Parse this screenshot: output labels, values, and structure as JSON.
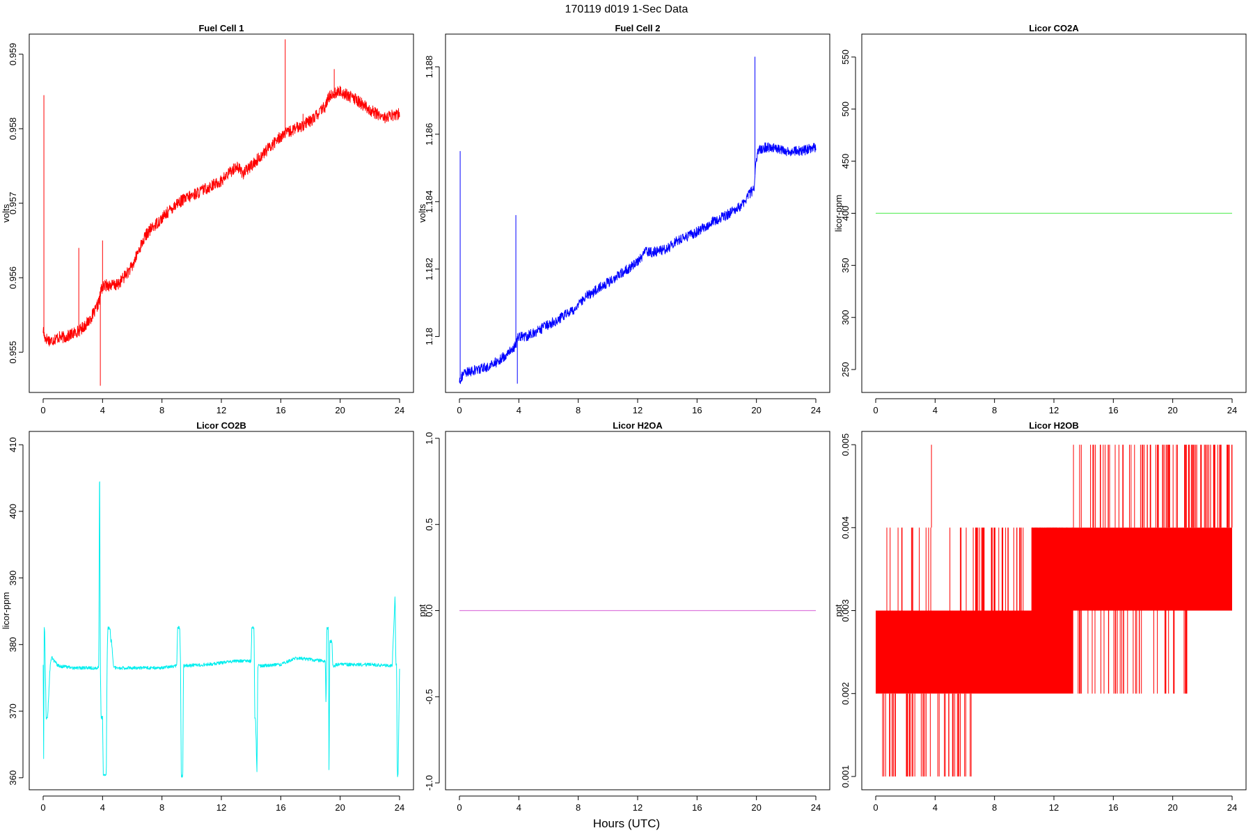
{
  "figure": {
    "title": "170119   d019   1-Sec Data",
    "xlabel": "Hours (UTC)"
  },
  "chart_data": [
    {
      "type": "line",
      "title": "Fuel Cell 1",
      "ylabel": "volts",
      "color": "#ff0000",
      "xlim": [
        0,
        24
      ],
      "ylim": [
        0.95446,
        0.95927
      ],
      "xticks": [
        0,
        4,
        8,
        12,
        16,
        20,
        24
      ],
      "yticks": [
        0.955,
        0.956,
        0.957,
        0.958,
        0.959
      ],
      "noise": 8e-05,
      "x": [
        0,
        0.1,
        0.5,
        1,
        1.5,
        2,
        2.5,
        3,
        3.5,
        3.8,
        3.9,
        4.2,
        5,
        6,
        6.5,
        7,
        7.5,
        8,
        8.5,
        9,
        10,
        11,
        12,
        13,
        13.5,
        14,
        14.5,
        15,
        16,
        17,
        18,
        19,
        19.3,
        20,
        21,
        22,
        23,
        24
      ],
      "y": [
        0.9553,
        0.9552,
        0.95515,
        0.9552,
        0.9552,
        0.95525,
        0.9553,
        0.9554,
        0.95555,
        0.9557,
        0.95585,
        0.9559,
        0.9559,
        0.95615,
        0.9564,
        0.9566,
        0.9567,
        0.9568,
        0.9569,
        0.957,
        0.9571,
        0.9572,
        0.9573,
        0.9575,
        0.9574,
        0.9575,
        0.9576,
        0.9577,
        0.9579,
        0.958,
        0.9581,
        0.9583,
        0.95845,
        0.9585,
        0.9584,
        0.95825,
        0.95815,
        0.9582
      ],
      "spikes": [
        [
          0.05,
          0.95845
        ],
        [
          2.4,
          0.9564
        ],
        [
          3.85,
          0.95455
        ],
        [
          4.0,
          0.9565
        ],
        [
          16.3,
          0.9592
        ],
        [
          17.5,
          0.9582
        ],
        [
          19.6,
          0.9588
        ]
      ]
    },
    {
      "type": "line",
      "title": "Fuel Cell 2",
      "ylabel": "volts",
      "color": "#0000ff",
      "xlim": [
        0,
        24
      ],
      "ylim": [
        1.17834,
        1.18897
      ],
      "xticks": [
        0,
        4,
        8,
        12,
        16,
        20,
        24
      ],
      "yticks": [
        1.18,
        1.182,
        1.184,
        1.186,
        1.188
      ],
      "noise": 0.00015,
      "x": [
        0,
        0.3,
        1,
        2,
        3,
        3.7,
        3.85,
        3.9,
        4.5,
        5,
        6,
        7,
        8,
        8.5,
        9,
        9.5,
        10,
        11,
        12,
        12.5,
        13,
        14,
        14.5,
        15,
        16,
        17,
        18,
        19,
        19.5,
        19.85,
        19.95,
        20.1,
        20.5,
        21,
        22,
        23,
        24
      ],
      "y": [
        1.1787,
        1.1789,
        1.179,
        1.1791,
        1.1794,
        1.1797,
        1.1798,
        1.18,
        1.18,
        1.1801,
        1.18035,
        1.1806,
        1.1809,
        1.1812,
        1.1813,
        1.1815,
        1.1816,
        1.1819,
        1.1822,
        1.1825,
        1.1825,
        1.1826,
        1.1828,
        1.1829,
        1.1831,
        1.1834,
        1.1836,
        1.1839,
        1.1842,
        1.1844,
        1.1852,
        1.1855,
        1.1856,
        1.1856,
        1.1855,
        1.1855,
        1.1856
      ],
      "spikes": [
        [
          0.05,
          1.1855
        ],
        [
          3.8,
          1.1836
        ],
        [
          3.9,
          1.1786
        ],
        [
          19.9,
          1.1883
        ]
      ]
    },
    {
      "type": "line",
      "title": "Licor CO2A",
      "ylabel": "licor-ppm",
      "color": "#66ee66",
      "xlim": [
        0,
        24
      ],
      "ylim": [
        228,
        572
      ],
      "xticks": [
        0,
        4,
        8,
        12,
        16,
        20,
        24
      ],
      "yticks": [
        250,
        300,
        350,
        400,
        450,
        500,
        550
      ],
      "noise": 0,
      "x": [
        0,
        24
      ],
      "y": [
        400,
        400
      ],
      "spikes": []
    },
    {
      "type": "line",
      "title": "Licor CO2B",
      "ylabel": "licor-ppm",
      "color": "#00eeee",
      "xlim": [
        0,
        24
      ],
      "ylim": [
        358.2,
        412
      ],
      "xticks": [
        0,
        4,
        8,
        12,
        16,
        20,
        24
      ],
      "yticks": [
        360,
        370,
        380,
        390,
        400,
        410
      ],
      "noise": 0.25,
      "x": [
        0,
        0.04,
        0.06,
        0.1,
        0.2,
        0.3,
        0.45,
        0.5,
        0.6,
        1,
        2,
        3,
        3.7,
        3.75,
        3.8,
        3.85,
        3.9,
        4.0,
        4.05,
        4.1,
        4.25,
        4.3,
        4.35,
        4.5,
        4.55,
        4.6,
        4.75,
        4.8,
        6,
        8,
        9.0,
        9.05,
        9.1,
        9.2,
        9.25,
        9.3,
        9.4,
        9.45,
        9.5,
        11,
        13,
        14.0,
        14.05,
        14.1,
        14.2,
        14.25,
        14.3,
        14.4,
        14.45,
        14.5,
        16,
        17,
        19.0,
        19.05,
        19.1,
        19.2,
        19.25,
        19.3,
        19.45,
        19.5,
        19.55,
        19.65,
        19.7,
        20,
        22,
        23.5,
        23.7,
        23.75,
        23.8,
        23.85,
        23.9,
        24
      ],
      "y": [
        377,
        360.5,
        382.5,
        382.5,
        369,
        369,
        376,
        377.5,
        378,
        376.8,
        376.5,
        376.5,
        376.5,
        377,
        410,
        377,
        369,
        369,
        360.3,
        360.3,
        360.3,
        376.5,
        382.5,
        382.5,
        380.5,
        380.5,
        376.5,
        376.5,
        376.5,
        376.5,
        376.8,
        382.5,
        382.5,
        382.5,
        376.8,
        360.3,
        360.3,
        376.8,
        376.8,
        377,
        377.5,
        377.5,
        382.5,
        382.5,
        382.5,
        369,
        369,
        360.3,
        376.8,
        376.8,
        377,
        378,
        377.5,
        370.5,
        382.5,
        382.5,
        360.3,
        380.5,
        380.5,
        376.8,
        376.8,
        376.8,
        377,
        377,
        377,
        376.8,
        387.5,
        377,
        377,
        360.3,
        360.3,
        376.5
      ],
      "spikes": []
    },
    {
      "type": "line",
      "title": "Licor H2OA",
      "ylabel": "ppt",
      "color": "#dd77dd",
      "xlim": [
        0,
        24
      ],
      "ylim": [
        -1.04,
        1.04
      ],
      "xticks": [
        0,
        4,
        8,
        12,
        16,
        20,
        24
      ],
      "yticks": [
        -1.0,
        -0.5,
        0.0,
        0.5,
        1.0
      ],
      "noise": 0,
      "x": [
        0,
        24
      ],
      "y": [
        0,
        0
      ],
      "spikes": []
    },
    {
      "type": "line",
      "title": "Licor H2OB",
      "ylabel": "ppt",
      "color": "#ff0000",
      "xlim": [
        0,
        24
      ],
      "ylim": [
        0.00084,
        0.00516
      ],
      "xticks": [
        0,
        4,
        8,
        12,
        16,
        20,
        24
      ],
      "yticks": [
        0.001,
        0.002,
        0.003,
        0.004,
        0.005
      ],
      "noise": 0,
      "bands": [
        {
          "x0": 0,
          "x1": 13.3,
          "y0": 0.002,
          "y1": 0.003
        },
        {
          "x0": 10.5,
          "x1": 24,
          "y0": 0.003,
          "y1": 0.004
        }
      ],
      "x": [],
      "y": [],
      "spikes": []
    }
  ]
}
